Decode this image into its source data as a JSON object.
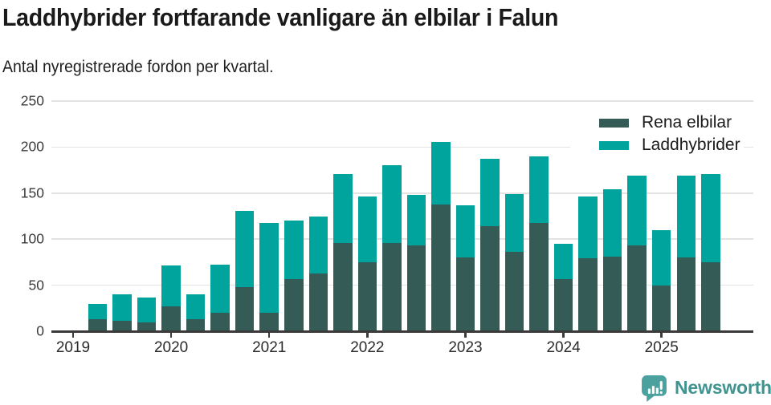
{
  "chart_data": {
    "type": "bar",
    "stacked": true,
    "title": "Laddhybrider fortfarande vanligare än elbilar i Falun",
    "subtitle": "Antal nyregistrerade fordon per kvartal.",
    "categories": [
      "2019 Q2",
      "2019 Q3",
      "2019 Q4",
      "2020 Q1",
      "2020 Q2",
      "2020 Q3",
      "2020 Q4",
      "2021 Q1",
      "2021 Q2",
      "2021 Q3",
      "2021 Q4",
      "2022 Q1",
      "2022 Q2",
      "2022 Q3",
      "2022 Q4",
      "2023 Q1",
      "2023 Q2",
      "2023 Q3",
      "2023 Q4",
      "2024 Q1",
      "2024 Q2",
      "2024 Q3",
      "2024 Q4",
      "2025 Q1",
      "2025 Q2",
      "2025 Q3"
    ],
    "series": [
      {
        "name": "Rena elbilar",
        "color": "#355B56",
        "values": [
          13,
          11,
          10,
          27,
          13,
          20,
          48,
          20,
          57,
          63,
          96,
          75,
          96,
          93,
          138,
          80,
          114,
          86,
          118,
          57,
          79,
          81,
          93,
          50,
          80,
          75
        ]
      },
      {
        "name": "Laddhybrider",
        "color": "#00A49C",
        "values": [
          17,
          29,
          27,
          44,
          27,
          52,
          83,
          98,
          63,
          62,
          75,
          71,
          84,
          55,
          68,
          57,
          73,
          63,
          72,
          38,
          67,
          73,
          76,
          60,
          89,
          96
        ]
      }
    ],
    "xlabel": "",
    "ylabel": "",
    "ylim": [
      0,
      250
    ],
    "yticks": [
      0,
      50,
      100,
      150,
      200,
      250
    ],
    "xtick_labels": [
      "2019",
      "2020",
      "2021",
      "2022",
      "2023",
      "2024",
      "2025"
    ],
    "grid": "horizontal",
    "legend_position": "top-right"
  },
  "footer": {
    "brand": "Newsworthy",
    "logo_icon": "speech-bubble-bar-chart-icon"
  },
  "colors": {
    "series_dark": "#355B56",
    "series_teal": "#00A49C",
    "axis": "#3A3A3A",
    "grid": "#E3E3E3",
    "y_tick_text": "#3A3A3A",
    "x_tick_text": "#2B2B2B",
    "title_text": "#1A1A1A",
    "brand_text": "#3F948F",
    "logo": "#4BA19D",
    "background": "#FFFFFF"
  }
}
